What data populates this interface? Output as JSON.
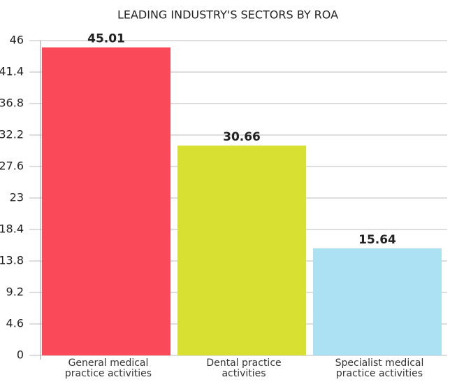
{
  "chart_data": {
    "type": "bar",
    "title": "LEADING INDUSTRY'S SECTORS BY ROA",
    "categories": [
      "General medical practice activities",
      "Dental practice activities",
      "Specialist medical practice activities"
    ],
    "values": [
      45.01,
      30.66,
      15.64
    ],
    "colors": [
      "#fa4a5a",
      "#d8e032",
      "#abe1f2"
    ],
    "ylim": [
      0,
      46
    ],
    "yticks": [
      0,
      4.6,
      9.2,
      13.8,
      18.4,
      23,
      27.6,
      32.2,
      36.8,
      41.4,
      46
    ],
    "grid": true
  }
}
